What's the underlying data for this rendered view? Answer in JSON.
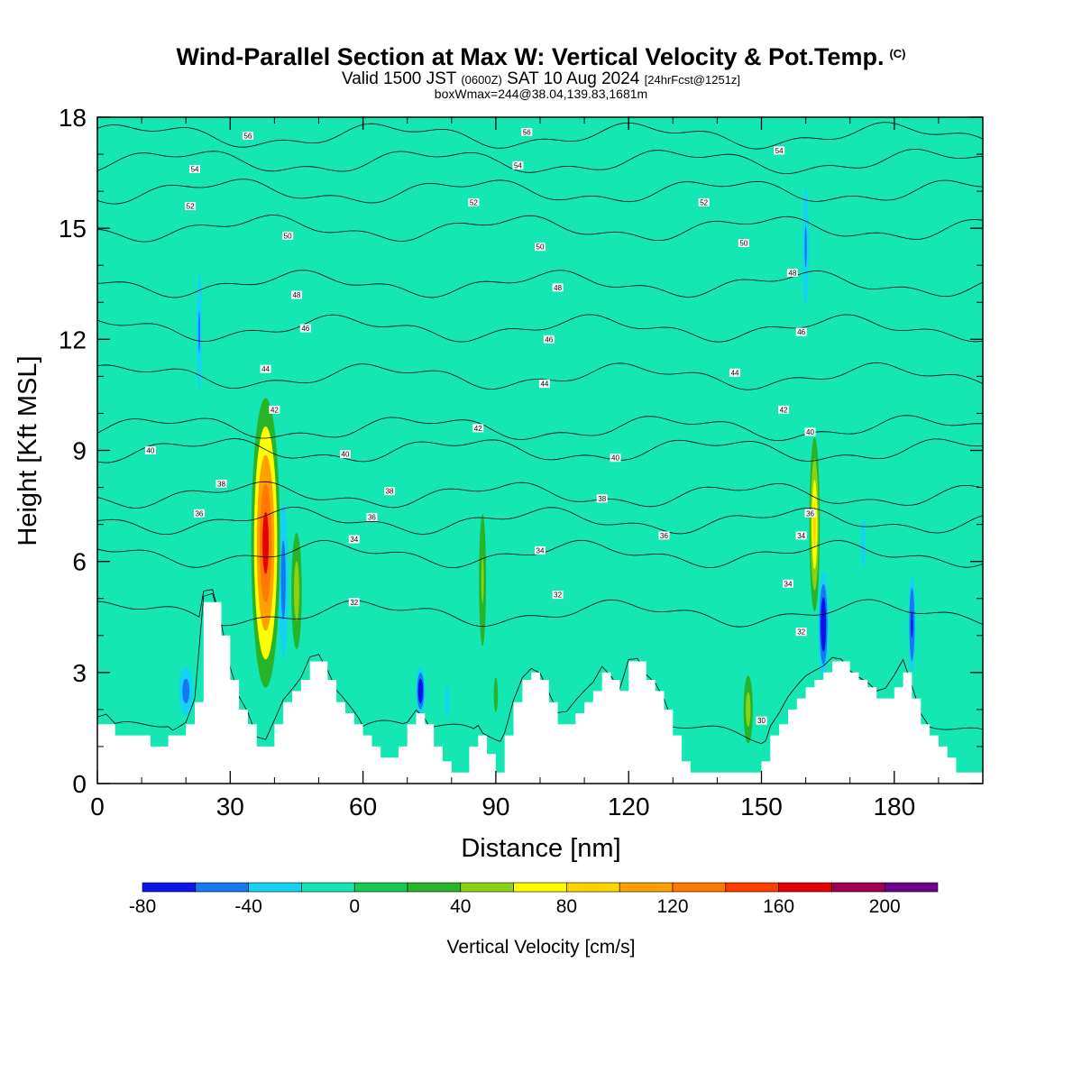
{
  "header": {
    "title": "Wind-Parallel Section at Max W: Vertical Velocity & Pot.Temp.",
    "copyright": "(C)",
    "valid_prefix": "Valid 1500 JST",
    "valid_utc": "(0600Z)",
    "valid_date": "SAT 10 Aug 2024",
    "forecast_tag": "[24hrFcst@1251z]",
    "box_info": "boxWmax=244@38.04,139.83,1681m"
  },
  "chart_data": {
    "type": "heatmap",
    "title": "Wind-Parallel Section at Max W: Vertical Velocity & Pot.Temp.",
    "xlabel": "Distance [nm]",
    "ylabel": "Height [Kft MSL]",
    "xlim": [
      0,
      200
    ],
    "ylim": [
      0,
      18
    ],
    "x_ticks": [
      0,
      30,
      60,
      90,
      120,
      150,
      180
    ],
    "y_ticks": [
      0,
      3,
      6,
      9,
      12,
      15,
      18
    ],
    "grid": false,
    "colorbar": {
      "label": "Vertical Velocity [cm/s]",
      "placement": "bottom",
      "bins": [
        -80,
        -60,
        -40,
        -20,
        0,
        20,
        40,
        60,
        80,
        100,
        120,
        140,
        160,
        180,
        200,
        220
      ],
      "colors": [
        "#0a14e6",
        "#1478f0",
        "#14d2f5",
        "#14e6b4",
        "#14c850",
        "#28b428",
        "#8cd214",
        "#ffff00",
        "#ffd200",
        "#ffa000",
        "#ff7800",
        "#ff3c00",
        "#e60000",
        "#a00050",
        "#6e008c"
      ],
      "tick_values": [
        -80,
        -40,
        0,
        40,
        80,
        120,
        160,
        200
      ],
      "tick_labels": [
        "-80",
        "-40",
        "0",
        "40",
        "80",
        "120",
        "160",
        "200"
      ]
    },
    "background_bin_value": -10,
    "terrain": {
      "x": [
        0,
        2,
        4,
        10,
        12,
        16,
        20,
        22,
        24,
        26,
        28,
        30,
        32,
        34,
        36,
        38,
        40,
        42,
        44,
        46,
        48,
        50,
        52,
        54,
        56,
        58,
        60,
        62,
        64,
        66,
        68,
        70,
        72,
        74,
        76,
        78,
        80,
        82,
        84,
        86,
        88,
        90,
        92,
        94,
        96,
        98,
        100,
        102,
        104,
        106,
        108,
        110,
        112,
        114,
        116,
        118,
        120,
        122,
        124,
        126,
        128,
        130,
        132,
        134,
        136,
        138,
        140,
        142,
        144,
        146,
        148,
        150,
        152,
        154,
        156,
        158,
        160,
        162,
        164,
        166,
        168,
        170,
        172,
        174,
        176,
        178,
        180,
        182,
        184,
        186,
        188,
        190,
        192,
        194,
        196,
        198,
        200
      ],
      "y": [
        1.6,
        1.6,
        1.3,
        1.3,
        1.0,
        1.3,
        1.6,
        2.2,
        4.9,
        4.9,
        4.0,
        2.8,
        2.0,
        1.6,
        1.0,
        1.0,
        1.6,
        2.2,
        2.5,
        2.8,
        3.3,
        3.3,
        2.8,
        2.2,
        1.9,
        1.6,
        1.3,
        1.0,
        0.7,
        0.7,
        1.0,
        1.6,
        1.9,
        1.6,
        1.0,
        0.6,
        0.3,
        0.3,
        1.0,
        1.3,
        0.8,
        0.3,
        1.3,
        2.2,
        2.8,
        3.0,
        2.8,
        2.2,
        1.6,
        1.6,
        1.9,
        2.2,
        2.5,
        3.0,
        2.8,
        2.5,
        3.3,
        3.3,
        2.8,
        2.5,
        2.0,
        1.3,
        0.6,
        0.3,
        0.3,
        0.3,
        0.3,
        0.3,
        0.3,
        0.3,
        0.3,
        0.6,
        1.3,
        1.6,
        2.0,
        2.3,
        2.6,
        2.8,
        3.0,
        3.3,
        3.3,
        3.0,
        2.8,
        2.6,
        2.3,
        2.3,
        2.6,
        3.0,
        2.3,
        1.6,
        1.3,
        1.0,
        0.7,
        0.3,
        0.3,
        0.3,
        0.3
      ]
    },
    "w_features": [
      {
        "x": 38,
        "y": 6.5,
        "sx": 2.0,
        "sy": 2.4,
        "w": 170
      },
      {
        "x": 38.5,
        "y": 8.6,
        "sx": 1.4,
        "sy": 1.0,
        "w": 90
      },
      {
        "x": 42,
        "y": 5.5,
        "sx": 0.8,
        "sy": 1.6,
        "w": -60
      },
      {
        "x": 45,
        "y": 5.2,
        "sx": 0.9,
        "sy": 1.2,
        "w": 55
      },
      {
        "x": 23,
        "y": 12.2,
        "sx": 0.6,
        "sy": 1.6,
        "w": -45
      },
      {
        "x": 20,
        "y": 2.5,
        "sx": 1.2,
        "sy": 0.5,
        "w": -55
      },
      {
        "x": 73,
        "y": 2.5,
        "sx": 0.8,
        "sy": 0.5,
        "w": -80
      },
      {
        "x": 79,
        "y": 2.2,
        "sx": 0.7,
        "sy": 0.6,
        "w": -30
      },
      {
        "x": 87,
        "y": 5.5,
        "sx": 0.8,
        "sy": 1.8,
        "w": 40
      },
      {
        "x": 90,
        "y": 2.4,
        "sx": 0.7,
        "sy": 0.7,
        "w": 30
      },
      {
        "x": 121,
        "y": 2.5,
        "sx": 0.8,
        "sy": 0.6,
        "w": -35
      },
      {
        "x": 147,
        "y": 2.0,
        "sx": 0.8,
        "sy": 0.7,
        "w": 55
      },
      {
        "x": 162,
        "y": 7.0,
        "sx": 0.9,
        "sy": 1.8,
        "w": 85
      },
      {
        "x": 164,
        "y": 4.3,
        "sx": 0.9,
        "sy": 1.1,
        "w": -85
      },
      {
        "x": 160,
        "y": 14.5,
        "sx": 0.7,
        "sy": 1.6,
        "w": -45
      },
      {
        "x": 184,
        "y": 4.3,
        "sx": 0.6,
        "sy": 1.0,
        "w": -70
      },
      {
        "x": 173,
        "y": 6.5,
        "sx": 0.7,
        "sy": 1.0,
        "w": -30
      }
    ],
    "theta_contours": [
      {
        "label": "30",
        "y": 1.4
      },
      {
        "label": "32",
        "y": 4.6
      },
      {
        "label": "34",
        "y": 6.2
      },
      {
        "label": "36",
        "y": 7.1
      },
      {
        "label": "38",
        "y": 7.8
      },
      {
        "label": "40",
        "y": 9.0
      },
      {
        "label": "42",
        "y": 9.6
      },
      {
        "label": "44",
        "y": 11.0
      },
      {
        "label": "46",
        "y": 12.3
      },
      {
        "label": "48",
        "y": 13.5
      },
      {
        "label": "50",
        "y": 15.0
      },
      {
        "label": "52",
        "y": 16.0
      },
      {
        "label": "54",
        "y": 16.8
      },
      {
        "label": "56",
        "y": 17.5
      }
    ],
    "contour_labels": [
      {
        "text": "56",
        "x": 34,
        "y": 17.5
      },
      {
        "text": "56",
        "x": 97,
        "y": 17.6
      },
      {
        "text": "54",
        "x": 22,
        "y": 16.6
      },
      {
        "text": "54",
        "x": 95,
        "y": 16.7
      },
      {
        "text": "54",
        "x": 154,
        "y": 17.1
      },
      {
        "text": "52",
        "x": 21,
        "y": 15.6
      },
      {
        "text": "52",
        "x": 85,
        "y": 15.7
      },
      {
        "text": "52",
        "x": 137,
        "y": 15.7
      },
      {
        "text": "50",
        "x": 43,
        "y": 14.8
      },
      {
        "text": "50",
        "x": 100,
        "y": 14.5
      },
      {
        "text": "50",
        "x": 146,
        "y": 14.6
      },
      {
        "text": "48",
        "x": 45,
        "y": 13.2
      },
      {
        "text": "48",
        "x": 104,
        "y": 13.4
      },
      {
        "text": "48",
        "x": 157,
        "y": 13.8
      },
      {
        "text": "46",
        "x": 47,
        "y": 12.3
      },
      {
        "text": "46",
        "x": 102,
        "y": 12.0
      },
      {
        "text": "46",
        "x": 159,
        "y": 12.2
      },
      {
        "text": "44",
        "x": 38,
        "y": 11.2
      },
      {
        "text": "44",
        "x": 101,
        "y": 10.8
      },
      {
        "text": "44",
        "x": 144,
        "y": 11.1
      },
      {
        "text": "42",
        "x": 40,
        "y": 10.1
      },
      {
        "text": "42",
        "x": 86,
        "y": 9.6
      },
      {
        "text": "42",
        "x": 155,
        "y": 10.1
      },
      {
        "text": "40",
        "x": 12,
        "y": 9.0
      },
      {
        "text": "40",
        "x": 56,
        "y": 8.9
      },
      {
        "text": "40",
        "x": 117,
        "y": 8.8
      },
      {
        "text": "40",
        "x": 161,
        "y": 9.5
      },
      {
        "text": "38",
        "x": 28,
        "y": 8.1
      },
      {
        "text": "38",
        "x": 66,
        "y": 7.9
      },
      {
        "text": "38",
        "x": 114,
        "y": 7.7
      },
      {
        "text": "36",
        "x": 23,
        "y": 7.3
      },
      {
        "text": "36",
        "x": 62,
        "y": 7.2
      },
      {
        "text": "36",
        "x": 128,
        "y": 6.7
      },
      {
        "text": "36",
        "x": 161,
        "y": 7.3
      },
      {
        "text": "34",
        "x": 58,
        "y": 6.6
      },
      {
        "text": "34",
        "x": 100,
        "y": 6.3
      },
      {
        "text": "34",
        "x": 156,
        "y": 5.4
      },
      {
        "text": "34",
        "x": 159,
        "y": 6.7
      },
      {
        "text": "32",
        "x": 58,
        "y": 4.9
      },
      {
        "text": "32",
        "x": 104,
        "y": 5.1
      },
      {
        "text": "32",
        "x": 159,
        "y": 4.1
      },
      {
        "text": "30",
        "x": 150,
        "y": 1.7
      }
    ]
  }
}
